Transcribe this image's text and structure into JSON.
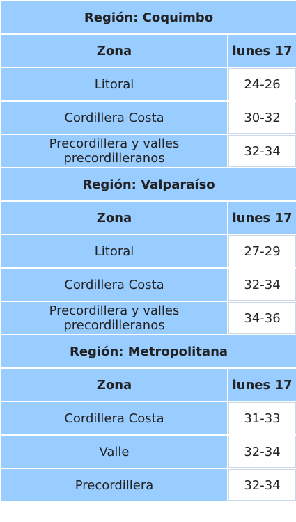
{
  "colors": {
    "header_bg": "#99ccff",
    "value_bg": "#ffffff",
    "text": "#222222"
  },
  "regions": [
    {
      "title": "Región: Coquimbo",
      "col_zone": "Zona",
      "col_day": "lunes 17",
      "rows": [
        {
          "zone": "Litoral",
          "value": "24-26"
        },
        {
          "zone": "Cordillera Costa",
          "value": "30-32"
        },
        {
          "zone": "Precordillera y valles precordilleranos",
          "value": "32-34"
        }
      ]
    },
    {
      "title": "Región: Valparaíso",
      "col_zone": "Zona",
      "col_day": "lunes 17",
      "rows": [
        {
          "zone": "Litoral",
          "value": "27-29"
        },
        {
          "zone": "Cordillera Costa",
          "value": "32-34"
        },
        {
          "zone": "Precordillera y valles precordilleranos",
          "value": "34-36"
        }
      ]
    },
    {
      "title": "Región: Metropolitana",
      "col_zone": "Zona",
      "col_day": "lunes 17",
      "rows": [
        {
          "zone": "Cordillera Costa",
          "value": "31-33"
        },
        {
          "zone": "Valle",
          "value": "32-34"
        },
        {
          "zone": "Precordillera",
          "value": "32-34"
        }
      ]
    }
  ]
}
